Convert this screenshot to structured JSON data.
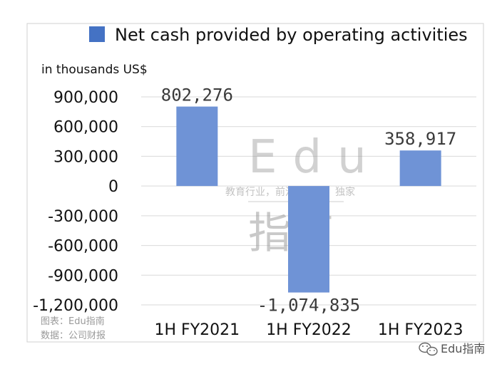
{
  "chart_data": {
    "type": "bar",
    "categories": [
      "1H FY2021",
      "1H FY2022",
      "1H FY2023"
    ],
    "series": [
      {
        "name": "Net cash provided by operating activities",
        "values": [
          802276,
          -1074835,
          358917
        ]
      }
    ],
    "data_labels": [
      "802,276",
      "-1,074,835",
      "358,917"
    ],
    "unit_label": "in thousands US$",
    "ylim": [
      -1200000,
      900000
    ],
    "y_ticks": [
      900000,
      600000,
      300000,
      0,
      -300000,
      -600000,
      -900000,
      -1200000
    ],
    "y_tick_labels": [
      "900,000",
      "600,000",
      "300,000",
      "0",
      "-300,000",
      "-600,000",
      "-900,000",
      "-1,200,000"
    ],
    "grid": true,
    "legend_position": "top",
    "bar_color": "#6f93d6",
    "legend_swatch_color": "#4472c4",
    "gridline_color": "#d9d9d9"
  },
  "source": {
    "chart_credit": "图表：Edu指南",
    "data_credit": "数据：公司财报"
  },
  "watermark": {
    "latin": "Edu",
    "tagline": "教育行业，前沿、深度、独家",
    "chinese": "指南"
  },
  "corner_brand": {
    "text": "Edu指南",
    "icon": "wechat-icon"
  }
}
